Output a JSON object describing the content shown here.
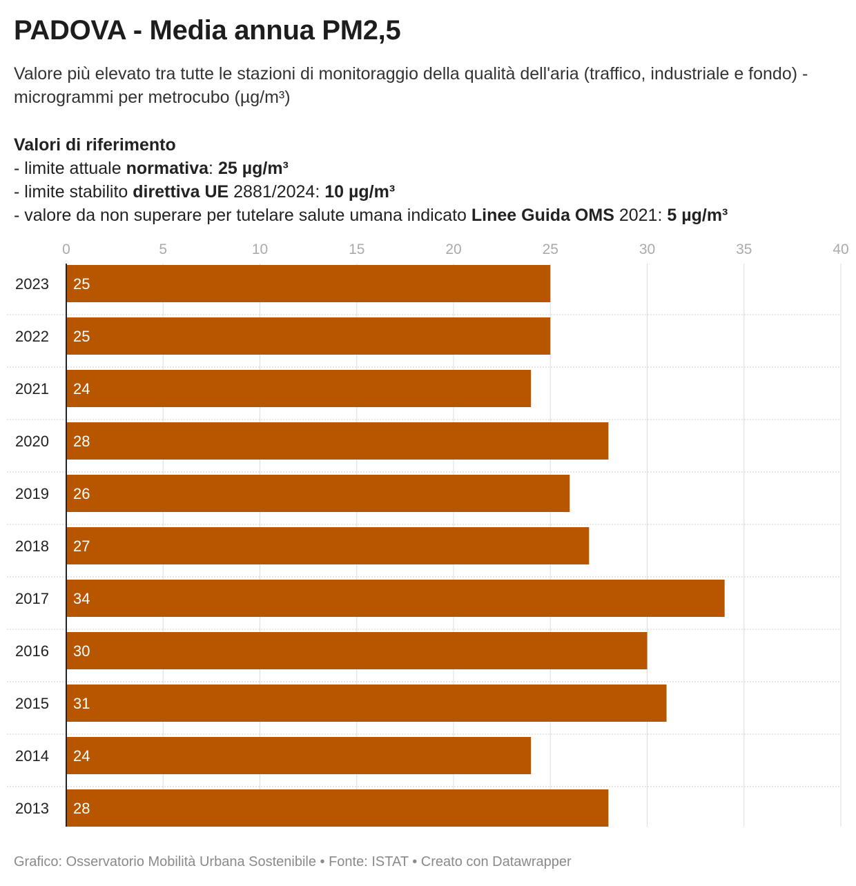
{
  "title": "PADOVA - Media annua PM2,5",
  "subtitle": "Valore più elevato tra tutte le stazioni di monitoraggio della qualità dell'aria (traffico, industriale e fondo) - microgrammi per metrocubo (µg/m³)",
  "references": {
    "heading": "Valori di riferimento",
    "line1": {
      "prefix": "- limite attuale ",
      "bold1": "normativa",
      "mid": ": ",
      "bold2": "25 µg/m³"
    },
    "line2": {
      "prefix": "- limite stabilito ",
      "bold1": "direttiva UE",
      "mid": " 2881/2024: ",
      "bold2": "10 µg/m³"
    },
    "line3": {
      "prefix": "- valore da non superare per tutelare salute umana indicato ",
      "bold1": "Linee Guida OMS",
      "mid": " 2021: ",
      "bold2": "5 µg/m³"
    }
  },
  "footer": "Grafico: Osservatorio Mobilità Urbana Sostenibile • Fonte: ISTAT • Creato con Datawrapper",
  "colors": {
    "bar": "#b85600",
    "grid": "#dddddd",
    "axis": "#222222",
    "tick_label": "#aaaaaa"
  },
  "chart_data": {
    "type": "bar",
    "orientation": "horizontal",
    "categories": [
      "2023",
      "2022",
      "2021",
      "2020",
      "2019",
      "2018",
      "2017",
      "2016",
      "2015",
      "2014",
      "2013"
    ],
    "values": [
      25,
      25,
      24,
      28,
      26,
      27,
      34,
      30,
      31,
      24,
      28
    ],
    "xlim": [
      0,
      40
    ],
    "xticks": [
      0,
      5,
      10,
      15,
      20,
      25,
      30,
      35,
      40
    ],
    "grid": true,
    "data_labels": true
  }
}
